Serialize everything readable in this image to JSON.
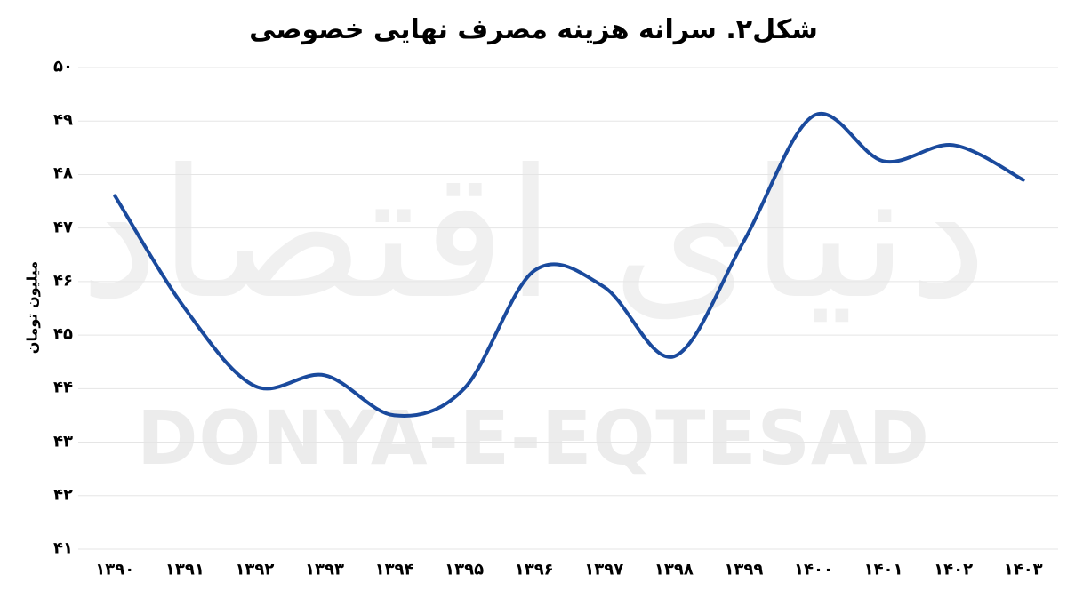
{
  "title": "شکل۲. سرانه هزینه مصرف نهایی خصوصی",
  "watermark": {
    "calligraphy": "دنیای اقتصاد",
    "latin": "DONYA-E-EQTESAD"
  },
  "chart_data": {
    "type": "line",
    "title": "شکل۲. سرانه هزینه مصرف نهایی خصوصی",
    "xlabel": "",
    "ylabel": "میلیون تومان",
    "categories": [
      "۱۳۹۰",
      "۱۳۹۱",
      "۱۳۹۲",
      "۱۳۹۳",
      "۱۳۹۴",
      "۱۳۹۵",
      "۱۳۹۶",
      "۱۳۹۷",
      "۱۳۹۸",
      "۱۳۹۹",
      "۱۴۰۰",
      "۱۴۰۱",
      "۱۴۰۲",
      "۱۴۰۳"
    ],
    "series": [
      {
        "name": "سرانه هزینه مصرف نهایی خصوصی",
        "values": [
          47.6,
          45.5,
          44.05,
          44.25,
          43.5,
          44.0,
          46.2,
          45.9,
          44.6,
          46.75,
          49.1,
          48.25,
          48.55,
          47.9
        ]
      }
    ],
    "ylim": [
      41,
      50
    ],
    "yticks": [
      {
        "value": 50,
        "label": "۵۰"
      },
      {
        "value": 49,
        "label": "۴۹"
      },
      {
        "value": 48,
        "label": "۴۸"
      },
      {
        "value": 47,
        "label": "۴۷"
      },
      {
        "value": 46,
        "label": "۴۶"
      },
      {
        "value": 45,
        "label": "۴۵"
      },
      {
        "value": 44,
        "label": "۴۴"
      },
      {
        "value": 43,
        "label": "۴۳"
      },
      {
        "value": 42,
        "label": "۴۲"
      },
      {
        "value": 41,
        "label": "۴۱"
      }
    ],
    "grid": true,
    "smooth": true,
    "legend_position": "none",
    "colors": {
      "line": "#1a4a9d",
      "gridline": "#e5e5e5",
      "label": "#000000",
      "watermark_latin": "#ececec",
      "watermark_calligraphy": "#f0f0f0"
    }
  }
}
